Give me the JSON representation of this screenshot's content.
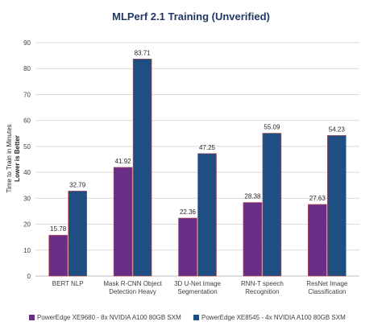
{
  "chart_data": {
    "type": "bar",
    "title": "MLPerf 2.1 Training (Unverified)",
    "ylabel_line1": "Time to Train in Minutes",
    "ylabel_line2": "Lower is Better",
    "xlabel": "",
    "ylim": [
      0,
      90
    ],
    "yticks": [
      0,
      10,
      20,
      30,
      40,
      50,
      60,
      70,
      80,
      90
    ],
    "grid": true,
    "legend_position": "bottom",
    "categories": [
      [
        "BERT NLP"
      ],
      [
        "Mask R-CNN Object",
        "Detection Heavy"
      ],
      [
        "3D U-Net Image",
        "Segmentation"
      ],
      [
        "RNN-T speech",
        "Recognition"
      ],
      [
        "ResNet Image",
        "Classification"
      ]
    ],
    "series": [
      {
        "name": "PowerEdge XE9680 - 8x NVIDIA A100 80GB SXM",
        "color": "#6b2e86",
        "values": [
          15.78,
          41.92,
          22.36,
          28.38,
          27.63
        ],
        "labels": [
          "15.78",
          "41.92",
          "22.36",
          "28.38",
          "27.63"
        ]
      },
      {
        "name": "PowerEdge XE8545 - 4x NVIDIA A100 80GB SXM",
        "color": "#1f4e82",
        "values": [
          32.79,
          83.71,
          47.25,
          55.09,
          54.23
        ],
        "labels": [
          "32.79",
          "83.71",
          "47.25",
          "55.09",
          "54.23"
        ]
      }
    ]
  }
}
